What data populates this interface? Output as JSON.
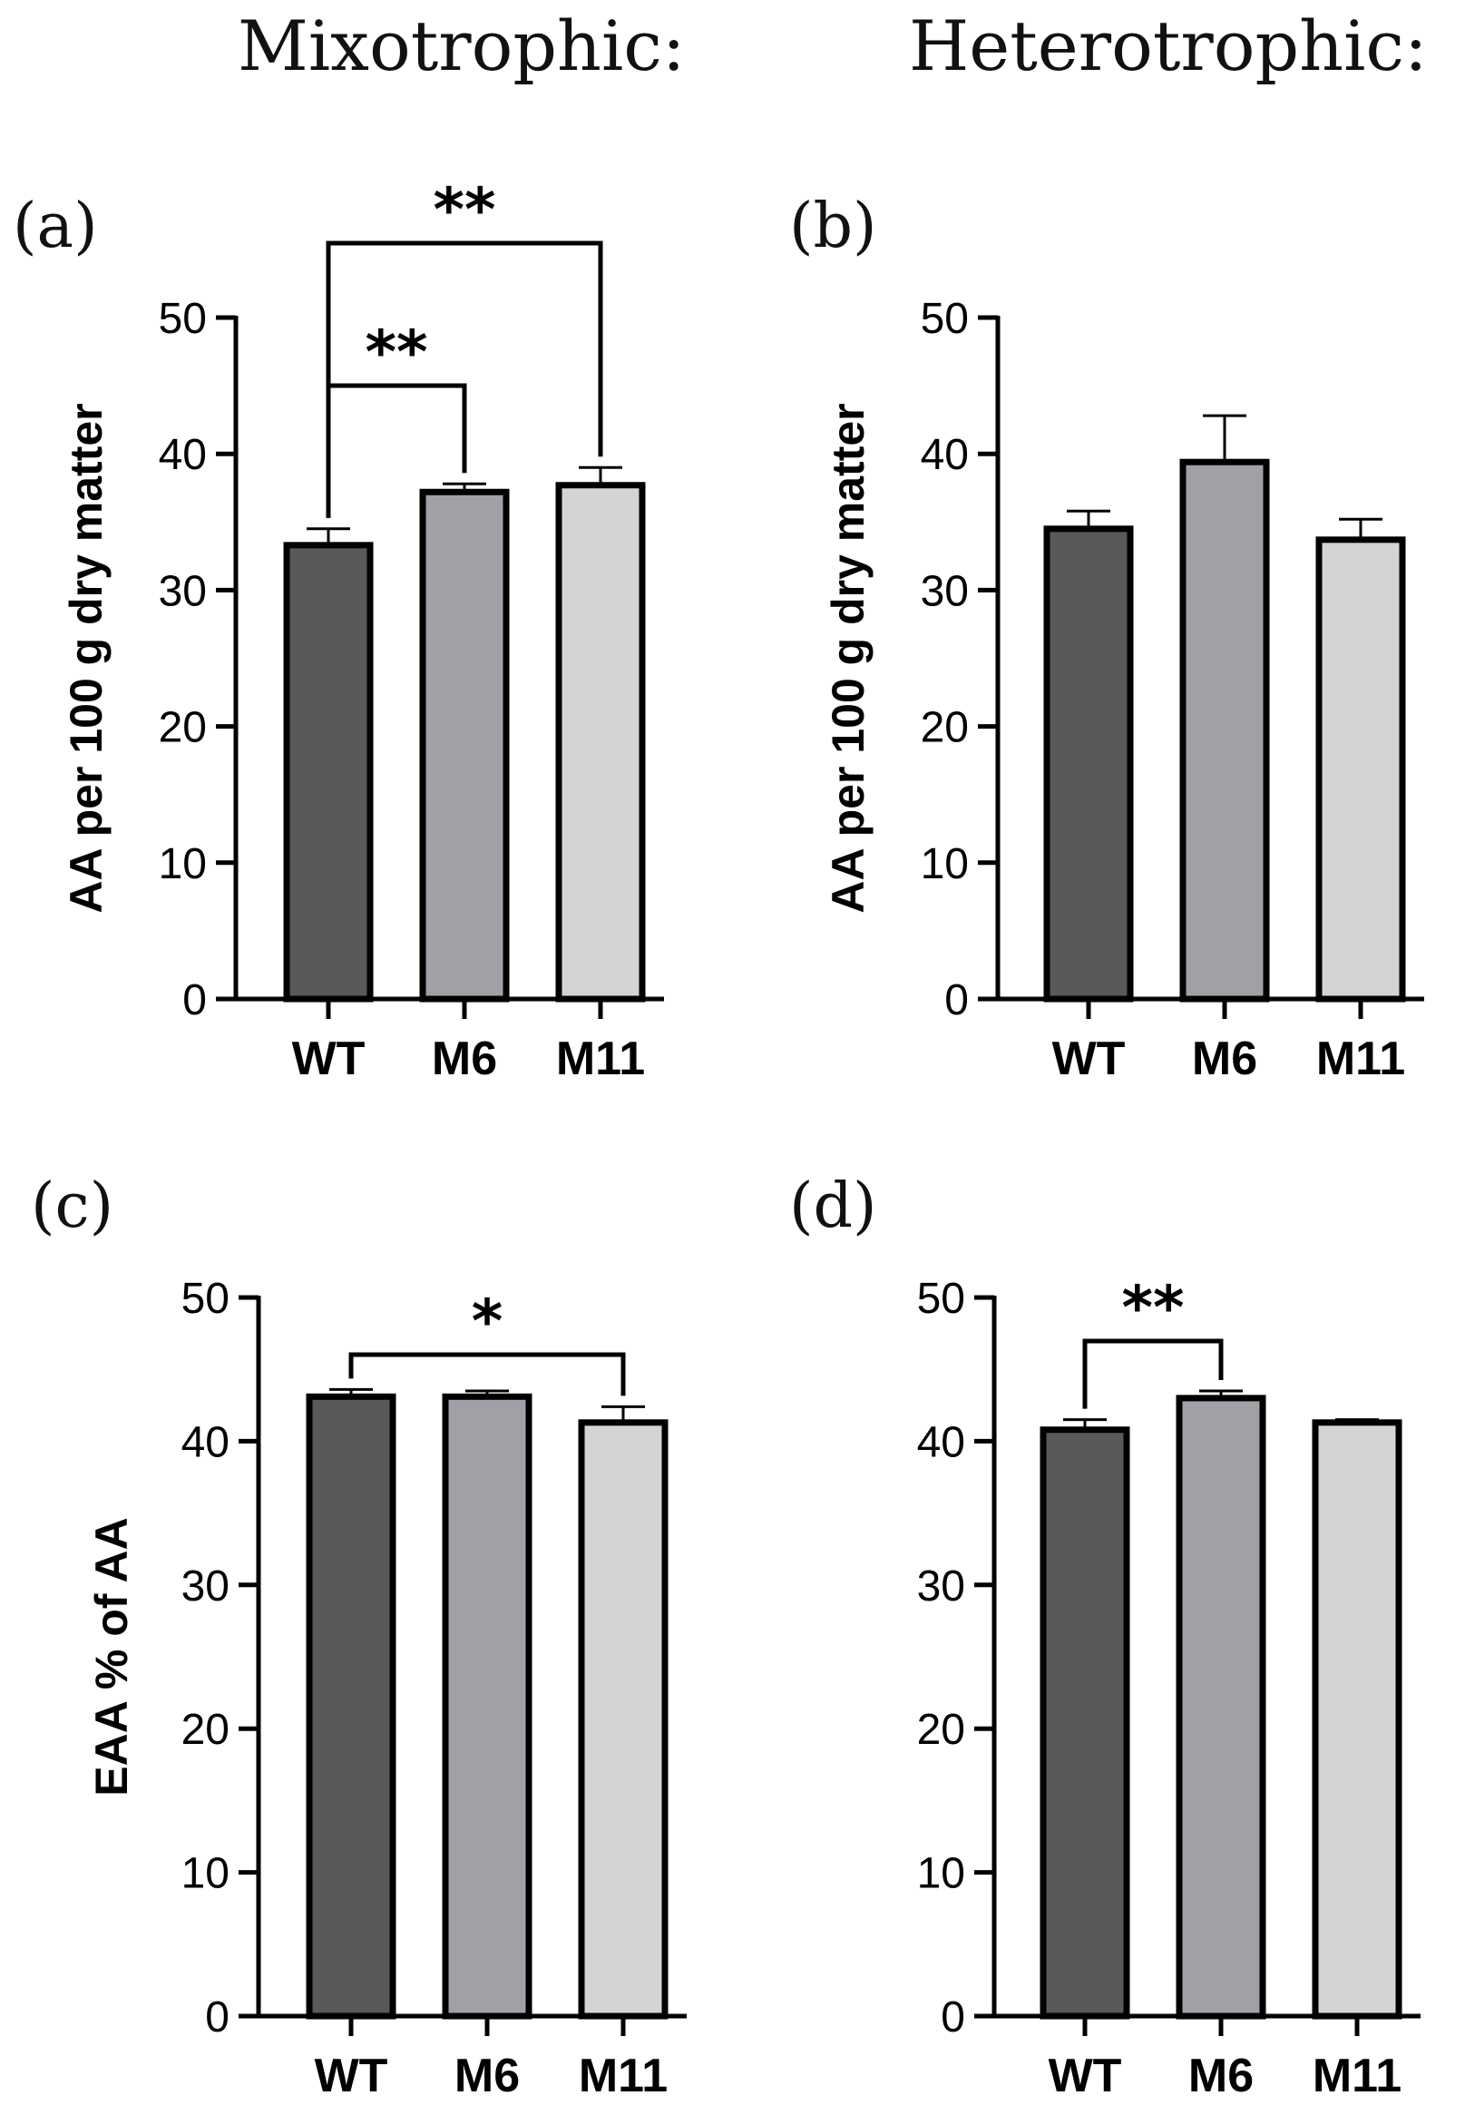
{
  "columns": {
    "mixotrophic": "Mixotrophic:",
    "heterotrophic": "Heterotrophic:"
  },
  "colors": {
    "WT": "#595959",
    "M6": "#a0a0a6",
    "M11": "#d4d4d4",
    "outline": "#000000",
    "axis": "#000000"
  },
  "chart_data": [
    {
      "id": "a",
      "panel_label": "(a)",
      "type": "bar",
      "condition": "Mixotrophic",
      "categories": [
        "WT",
        "M6",
        "M11"
      ],
      "values": [
        33.3,
        37.2,
        37.7
      ],
      "errors": [
        1.2,
        0.6,
        1.3
      ],
      "ylabel": "AA per 100 g dry matter",
      "ylim": [
        0,
        50
      ],
      "yticks": [
        0,
        10,
        20,
        30,
        40,
        50
      ],
      "significance": [
        {
          "from": 0,
          "to": 1,
          "label": "**",
          "level": 1
        },
        {
          "from": 0,
          "to": 2,
          "label": "**",
          "level": 2
        }
      ]
    },
    {
      "id": "b",
      "panel_label": "(b)",
      "type": "bar",
      "condition": "Heterotrophic",
      "categories": [
        "WT",
        "M6",
        "M11"
      ],
      "values": [
        34.5,
        39.4,
        33.7
      ],
      "errors": [
        1.3,
        3.4,
        1.5
      ],
      "ylabel": "AA per 100 g dry matter",
      "ylim": [
        0,
        50
      ],
      "yticks": [
        0,
        10,
        20,
        30,
        40,
        50
      ],
      "significance": []
    },
    {
      "id": "c",
      "panel_label": "(c)",
      "type": "bar",
      "condition": "Mixotrophic",
      "categories": [
        "WT",
        "M6",
        "M11"
      ],
      "values": [
        43.1,
        43.1,
        41.3
      ],
      "errors": [
        0.5,
        0.4,
        1.1
      ],
      "ylabel": "EAA % of AA",
      "ylim": [
        0,
        50
      ],
      "yticks": [
        0,
        10,
        20,
        30,
        40,
        50
      ],
      "significance": [
        {
          "from": 0,
          "to": 2,
          "label": "*",
          "level": 1
        }
      ]
    },
    {
      "id": "d",
      "panel_label": "(d)",
      "type": "bar",
      "condition": "Heterotrophic",
      "categories": [
        "WT",
        "M6",
        "M11"
      ],
      "values": [
        40.8,
        43.0,
        41.3
      ],
      "errors": [
        0.7,
        0.5,
        0.2
      ],
      "ylabel": "",
      "ylim": [
        0,
        50
      ],
      "yticks": [
        0,
        10,
        20,
        30,
        40,
        50
      ],
      "significance": [
        {
          "from": 0,
          "to": 1,
          "label": "**",
          "level": 1
        }
      ]
    }
  ]
}
